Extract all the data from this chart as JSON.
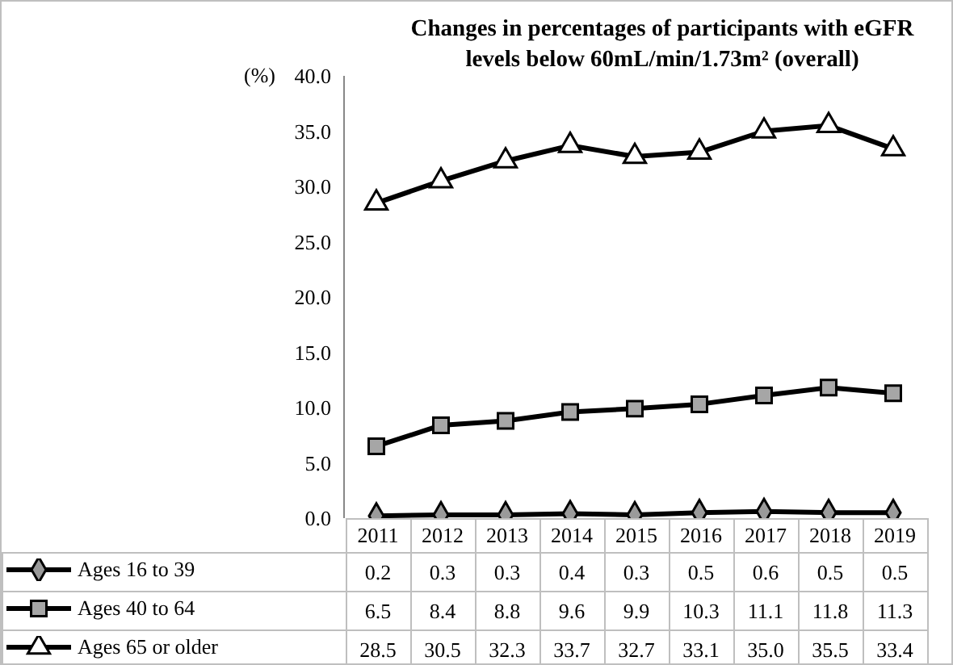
{
  "chart_data": {
    "type": "line",
    "title": "Changes in percentages of participants with eGFR levels below 60mL/min/1.73m² (overall)",
    "ylabel": "(%)",
    "categories": [
      "2011",
      "2012",
      "2013",
      "2014",
      "2015",
      "2016",
      "2017",
      "2018",
      "2019"
    ],
    "series": [
      {
        "name": "Ages 16 to 39",
        "color": "#000000",
        "marker": "diamond",
        "values": [
          0.2,
          0.3,
          0.3,
          0.4,
          0.3,
          0.5,
          0.6,
          0.5,
          0.5
        ]
      },
      {
        "name": "Ages 40 to 64",
        "color": "#000000",
        "marker": "square",
        "values": [
          6.5,
          8.4,
          8.8,
          9.6,
          9.9,
          10.3,
          11.1,
          11.8,
          11.3
        ]
      },
      {
        "name": "Ages 65 or older",
        "color": "#000000",
        "marker": "triangle",
        "values": [
          28.5,
          30.5,
          32.3,
          33.7,
          32.7,
          33.1,
          35.0,
          35.5,
          33.4
        ],
        "value_labels": [
          "28.5",
          "30.5",
          "32.3",
          "33.7",
          "32.7",
          "33.1",
          "35.0",
          "35.5",
          "33.4"
        ]
      }
    ],
    "ylim": [
      0,
      40
    ],
    "yticks": [
      {
        "value": 0,
        "label": "0.0"
      },
      {
        "value": 5,
        "label": "5.0"
      },
      {
        "value": 10,
        "label": "10.0"
      },
      {
        "value": 15,
        "label": "15.0"
      },
      {
        "value": 20,
        "label": "20.0"
      },
      {
        "value": 25,
        "label": "25.0"
      },
      {
        "value": 30,
        "label": "30.0"
      },
      {
        "value": 35,
        "label": "35.0"
      },
      {
        "value": 40,
        "label": "40.0"
      }
    ],
    "grid": false,
    "legend": "bottom",
    "data_labels": true,
    "line_style": "solid"
  }
}
